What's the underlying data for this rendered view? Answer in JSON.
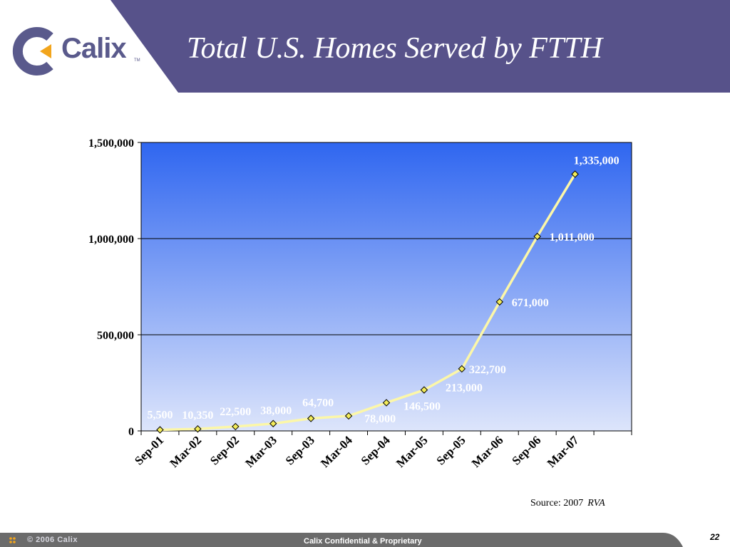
{
  "slide": {
    "title": "Total U.S. Homes Served by FTTH",
    "logo_text": "Calix",
    "logo_tm": "TM",
    "source_prefix": "Source: 2007",
    "source_name": "RVA",
    "footer_copyright": "© 2006 Calix",
    "footer_confidential": "Calix Confidential & Proprietary",
    "page_number": "22"
  },
  "colors": {
    "header_band": "#57528a",
    "logo": "#5a5a8c",
    "logo_accent": "#f2a51c",
    "plot_top": "#2f66f0",
    "plot_bottom": "#dde5fb",
    "line": "#fcf7a8",
    "marker": "#f3ec5a",
    "data_label": "#ffffff",
    "footer_band": "#8a8a8a",
    "footer_dark": "#6b6b6b"
  },
  "chart_data": {
    "type": "line",
    "title": "Total U.S. Homes Served by FTTH",
    "categories": [
      "Sep-01",
      "Mar-02",
      "Sep-02",
      "Mar-03",
      "Sep-03",
      "Mar-04",
      "Sep-04",
      "Mar-05",
      "Sep-05",
      "Mar-06",
      "Sep-06",
      "Mar-07"
    ],
    "values": [
      5500,
      10350,
      22500,
      38000,
      64700,
      78000,
      146500,
      213000,
      322700,
      671000,
      1011000,
      1335000
    ],
    "data_labels": [
      "5,500",
      "10,350",
      "22,500",
      "38,000",
      "64,700",
      "78,000",
      "146,500",
      "213,000",
      "322,700",
      "671,000",
      "1,011,000",
      "1,335,000"
    ],
    "y_ticks": [
      0,
      500000,
      1000000,
      1500000
    ],
    "y_tick_labels": [
      "0",
      "500,000",
      "1,000,000",
      "1,500,000"
    ],
    "ylim": [
      0,
      1500000
    ],
    "xlabel": "",
    "ylabel": "",
    "grid": true,
    "legend": "none"
  }
}
